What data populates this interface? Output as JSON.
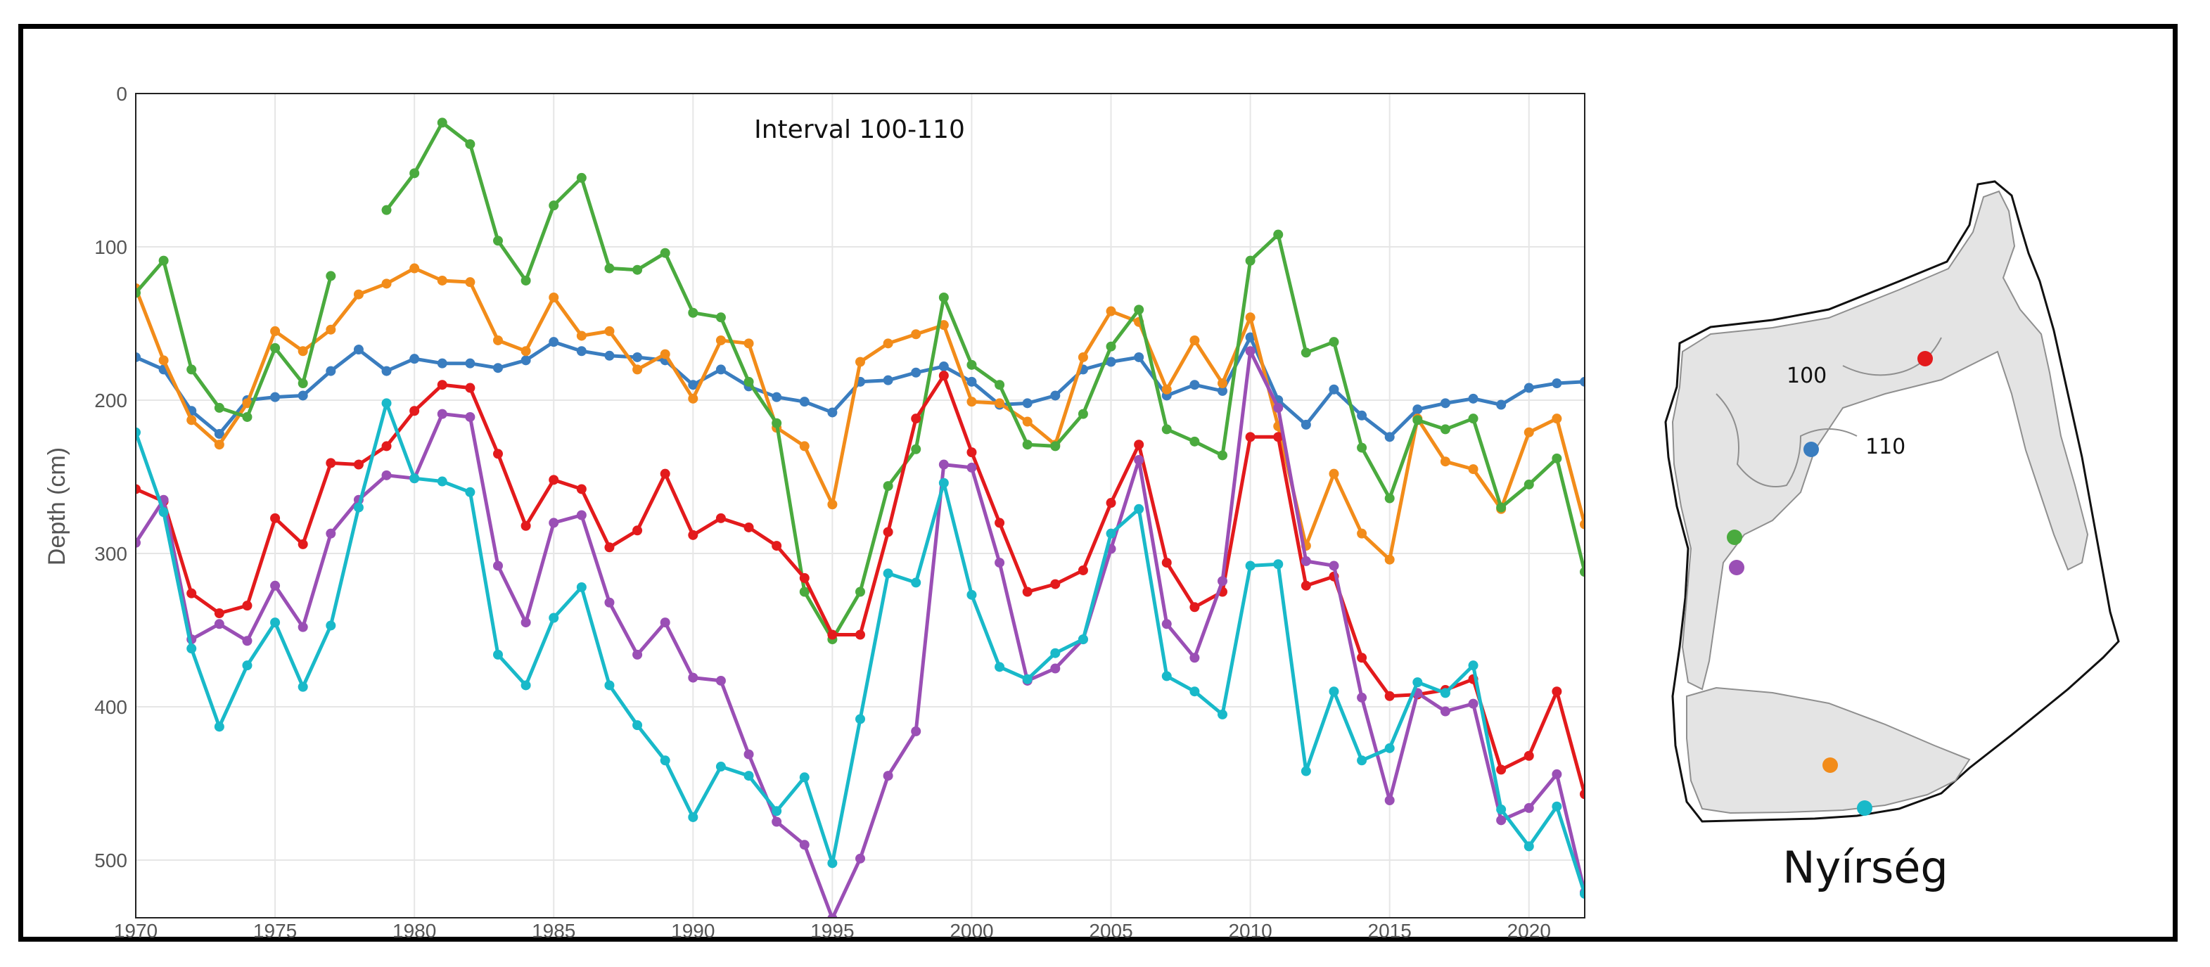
{
  "chart_data": {
    "type": "line",
    "title": "",
    "annotation": "Interval 100-110",
    "xlabel": "",
    "ylabel": "Depth (cm)",
    "xlim": [
      1970,
      2022
    ],
    "ylim": [
      0,
      535
    ],
    "y_inverted": true,
    "grid": true,
    "legend": "none",
    "x_ticks": [
      "1970",
      "1975",
      "1980",
      "1985",
      "1990",
      "1995",
      "2000",
      "2005",
      "2010",
      "2015",
      "2020"
    ],
    "y_ticks": [
      "0",
      "100",
      "200",
      "300",
      "400",
      "500"
    ],
    "x": [
      1970,
      1971,
      1972,
      1973,
      1974,
      1975,
      1976,
      1977,
      1978,
      1979,
      1980,
      1981,
      1982,
      1983,
      1984,
      1985,
      1986,
      1987,
      1988,
      1989,
      1990,
      1991,
      1992,
      1993,
      1994,
      1995,
      1996,
      1997,
      1998,
      1999,
      2000,
      2001,
      2002,
      2003,
      2004,
      2005,
      2006,
      2007,
      2008,
      2009,
      2010,
      2011,
      2012,
      2013,
      2014,
      2015,
      2016,
      2017,
      2018,
      2019,
      2020,
      2021,
      2022
    ],
    "series": [
      {
        "color": "#3a7dbf",
        "values": [
          172,
          180,
          207,
          222,
          200,
          198,
          197,
          181,
          167,
          181,
          173,
          176,
          176,
          179,
          174,
          162,
          168,
          171,
          172,
          174,
          190,
          180,
          191,
          198,
          201,
          208,
          188,
          187,
          182,
          178,
          188,
          203,
          202,
          197,
          180,
          175,
          172,
          197,
          190,
          194,
          159,
          200,
          216,
          193,
          210,
          224,
          206,
          202,
          199,
          203,
          192,
          189,
          188
        ]
      },
      {
        "color": "#f28c1a",
        "values": [
          127,
          174,
          213,
          229,
          202,
          155,
          168,
          154,
          131,
          124,
          114,
          122,
          123,
          161,
          168,
          133,
          158,
          155,
          180,
          170,
          199,
          161,
          163,
          218,
          230,
          268,
          175,
          163,
          157,
          151,
          201,
          202,
          214,
          229,
          172,
          142,
          149,
          193,
          161,
          189,
          146,
          217,
          295,
          248,
          287,
          304,
          212,
          240,
          245,
          271,
          221,
          212,
          281
        ]
      },
      {
        "color": "#4aaa3e",
        "values": [
          130,
          109,
          180,
          205,
          211,
          166,
          189,
          119,
          null,
          76,
          52,
          19,
          33,
          96,
          122,
          73,
          55,
          114,
          115,
          104,
          143,
          146,
          188,
          215,
          325,
          356,
          325,
          256,
          232,
          133,
          177,
          190,
          229,
          230,
          209,
          165,
          141,
          219,
          227,
          236,
          109,
          92,
          169,
          162,
          231,
          264,
          213,
          219,
          212,
          270,
          255,
          238,
          312
        ]
      },
      {
        "color": "#e31a1c",
        "values": [
          258,
          266,
          326,
          339,
          334,
          277,
          294,
          241,
          242,
          230,
          207,
          190,
          192,
          235,
          282,
          252,
          258,
          296,
          285,
          248,
          288,
          277,
          283,
          295,
          316,
          353,
          353,
          286,
          212,
          184,
          234,
          280,
          325,
          320,
          311,
          267,
          229,
          306,
          335,
          325,
          224,
          224,
          321,
          315,
          368,
          393,
          392,
          389,
          382,
          441,
          432,
          390,
          457
        ]
      },
      {
        "color": "#9a4fb5",
        "values": [
          293,
          265,
          356,
          346,
          357,
          321,
          348,
          287,
          265,
          249,
          251,
          209,
          211,
          308,
          345,
          280,
          275,
          332,
          366,
          345,
          381,
          383,
          431,
          475,
          490,
          538,
          499,
          445,
          416,
          242,
          244,
          306,
          383,
          375,
          356,
          297,
          239,
          346,
          368,
          318,
          168,
          205,
          305,
          308,
          394,
          461,
          391,
          403,
          398,
          474,
          466,
          444,
          521
        ]
      },
      {
        "color": "#19b9c9",
        "values": [
          221,
          273,
          362,
          413,
          373,
          345,
          387,
          347,
          270,
          202,
          251,
          253,
          260,
          366,
          386,
          342,
          322,
          386,
          412,
          435,
          472,
          439,
          445,
          468,
          446,
          502,
          408,
          313,
          319,
          254,
          327,
          374,
          382,
          365,
          356,
          287,
          271,
          380,
          390,
          405,
          308,
          307,
          442,
          390,
          435,
          427,
          384,
          391,
          373,
          467,
          491,
          465,
          522
        ]
      }
    ]
  },
  "map": {
    "region_name": "Nyírség",
    "contour_labels": [
      "100",
      "110"
    ],
    "well_colors": [
      "#e31a1c",
      "#3a7dbf",
      "#4aaa3e",
      "#9a4fb5",
      "#f28c1a",
      "#19b9c9"
    ]
  }
}
